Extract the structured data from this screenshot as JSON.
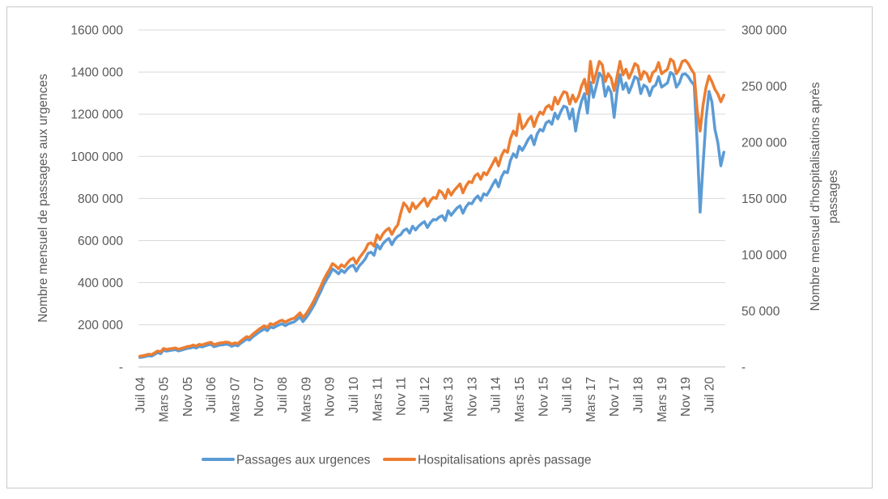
{
  "colors": {
    "background": "#FFFFFF",
    "text": "#595959",
    "gridline": "#D9D9D9",
    "axis_line": "#BFBFBF",
    "chart_border": "#C9C9C9",
    "series_blue": "#5B9BD5",
    "series_orange": "#ED7D31"
  },
  "legend": {
    "items": [
      {
        "label": "Passages aux urgences",
        "color": "#5B9BD5"
      },
      {
        "label": "Hospitalisations après passage",
        "color": "#ED7D31"
      }
    ]
  },
  "chart_data": {
    "type": "line",
    "title": "",
    "x_start": "2004-07",
    "x_end": "2020-12",
    "x_step": "month",
    "x_axis": {
      "tick_every": 8,
      "tick_labels": [
        "Juil 04",
        "Mars 05",
        "Nov 05",
        "Juil 06",
        "Mars 07",
        "Nov 07",
        "Juil 08",
        "Mars 09",
        "Nov 09",
        "Juil 10",
        "Mars 11",
        "Nov 11",
        "Juil 12",
        "Mars 13",
        "Nov 13",
        "Juil 14",
        "Mars 15",
        "Nov 15",
        "Juil 16",
        "Mars 17",
        "Nov 17",
        "Juil 18",
        "Mars 19",
        "Nov 19",
        "Juil 20"
      ]
    },
    "y_axis_left": {
      "label": "Nombre mensuel de passages aux urgences",
      "min": 0,
      "max": 1600000,
      "tick_labels": [
        "-",
        "200 000",
        "400 000",
        "600 000",
        "800 000",
        "1000 000",
        "1200 000",
        "1400 000",
        "1600 000"
      ]
    },
    "y_axis_right": {
      "label": "Nombre mensuel d'hospitalisations après passages",
      "label_lines": [
        "Nombre mensuel d'hospitalisations après",
        "passages"
      ],
      "min": 0,
      "max": 300000,
      "tick_labels": [
        "-",
        "50 000",
        "100 000",
        "150 000",
        "200 000",
        "250 000",
        "300 000"
      ]
    },
    "grid": "horizontal",
    "legend_position": "bottom",
    "series": [
      {
        "name": "Passages aux urgences",
        "axis": "left",
        "color": "#5B9BD5",
        "values": [
          45000,
          47000,
          50000,
          53000,
          52000,
          60000,
          68000,
          63000,
          80000,
          75000,
          78000,
          80000,
          82000,
          76000,
          80000,
          84000,
          88000,
          90000,
          95000,
          90000,
          98000,
          95000,
          100000,
          104000,
          107000,
          96000,
          100000,
          104000,
          105000,
          108000,
          106000,
          98000,
          104000,
          100000,
          112000,
          122000,
          132000,
          128000,
          142000,
          152000,
          163000,
          172000,
          180000,
          172000,
          190000,
          185000,
          193000,
          200000,
          205000,
          196000,
          204000,
          210000,
          213000,
          225000,
          238000,
          215000,
          232000,
          252000,
          275000,
          300000,
          330000,
          358000,
          390000,
          415000,
          438000,
          465000,
          455000,
          442000,
          460000,
          448000,
          465000,
          478000,
          483000,
          455000,
          480000,
          495000,
          512000,
          540000,
          545000,
          530000,
          580000,
          560000,
          585000,
          600000,
          610000,
          580000,
          605000,
          620000,
          628000,
          648000,
          655000,
          635000,
          668000,
          650000,
          668000,
          680000,
          690000,
          662000,
          685000,
          700000,
          698000,
          712000,
          718000,
          695000,
          742000,
          720000,
          738000,
          755000,
          765000,
          730000,
          760000,
          778000,
          775000,
          798000,
          812000,
          790000,
          822000,
          815000,
          838000,
          865000,
          888000,
          855000,
          902000,
          928000,
          922000,
          980000,
          1012000,
          995000,
          1048000,
          1028000,
          1052000,
          1080000,
          1098000,
          1055000,
          1105000,
          1128000,
          1120000,
          1158000,
          1168000,
          1152000,
          1205000,
          1178000,
          1212000,
          1238000,
          1232000,
          1178000,
          1225000,
          1120000,
          1205000,
          1262000,
          1298000,
          1205000,
          1352000,
          1280000,
          1335000,
          1395000,
          1378000,
          1285000,
          1330000,
          1302000,
          1185000,
          1312000,
          1388000,
          1318000,
          1348000,
          1302000,
          1338000,
          1378000,
          1368000,
          1298000,
          1338000,
          1328000,
          1288000,
          1328000,
          1338000,
          1378000,
          1328000,
          1338000,
          1348000,
          1398000,
          1388000,
          1328000,
          1348000,
          1388000,
          1392000,
          1378000,
          1355000,
          1338000,
          1068000,
          735000,
          958000,
          1178000,
          1308000,
          1258000,
          1128000,
          1065000,
          955000,
          1020000
        ]
      },
      {
        "name": "Hospitalisations après passage",
        "axis": "right",
        "color": "#ED7D31",
        "values": [
          9500,
          10000,
          10600,
          11200,
          11000,
          12600,
          14200,
          13400,
          16400,
          15500,
          16100,
          16500,
          16900,
          15800,
          16500,
          17300,
          18100,
          18500,
          19500,
          18600,
          20100,
          19600,
          20500,
          21300,
          21900,
          19800,
          20600,
          21300,
          21600,
          22100,
          21800,
          20300,
          21400,
          20700,
          23000,
          25000,
          27000,
          26200,
          29000,
          31000,
          33200,
          35000,
          36600,
          35000,
          38600,
          37600,
          39200,
          40600,
          41600,
          39800,
          41400,
          42600,
          43200,
          45600,
          48200,
          44000,
          47000,
          51000,
          55500,
          60500,
          66000,
          71500,
          77500,
          82500,
          87000,
          92000,
          90000,
          87500,
          91000,
          89000,
          92500,
          95500,
          97000,
          92000,
          97000,
          100500,
          104000,
          109500,
          110500,
          107500,
          117500,
          113500,
          118500,
          121500,
          123500,
          118000,
          123000,
          126500,
          137000,
          146000,
          143000,
          138000,
          146000,
          141000,
          144000,
          147000,
          150000,
          143000,
          148000,
          151000,
          150000,
          157000,
          155000,
          150000,
          158000,
          153000,
          157000,
          160000,
          163000,
          155000,
          161000,
          165000,
          164000,
          170000,
          172000,
          167000,
          173000,
          171000,
          176000,
          181000,
          186000,
          179000,
          188000,
          193000,
          191000,
          203000,
          210000,
          206000,
          225000,
          212000,
          215000,
          220000,
          223000,
          214000,
          222000,
          227000,
          225000,
          231000,
          233000,
          229000,
          240000,
          234000,
          240000,
          245000,
          244000,
          234000,
          242000,
          236000,
          241000,
          250000,
          256000,
          243000,
          272000,
          253000,
          262000,
          272000,
          269000,
          254000,
          261000,
          257000,
          246000,
          259000,
          272000,
          260000,
          265000,
          257000,
          263000,
          270000,
          268000,
          256000,
          263000,
          261000,
          254000,
          262000,
          264000,
          271000,
          261000,
          263000,
          265000,
          274000,
          272000,
          261000,
          265000,
          272000,
          273000,
          270000,
          265000,
          261000,
          229000,
          210000,
          233000,
          249000,
          259000,
          254000,
          247000,
          243000,
          236000,
          242000
        ]
      }
    ]
  }
}
